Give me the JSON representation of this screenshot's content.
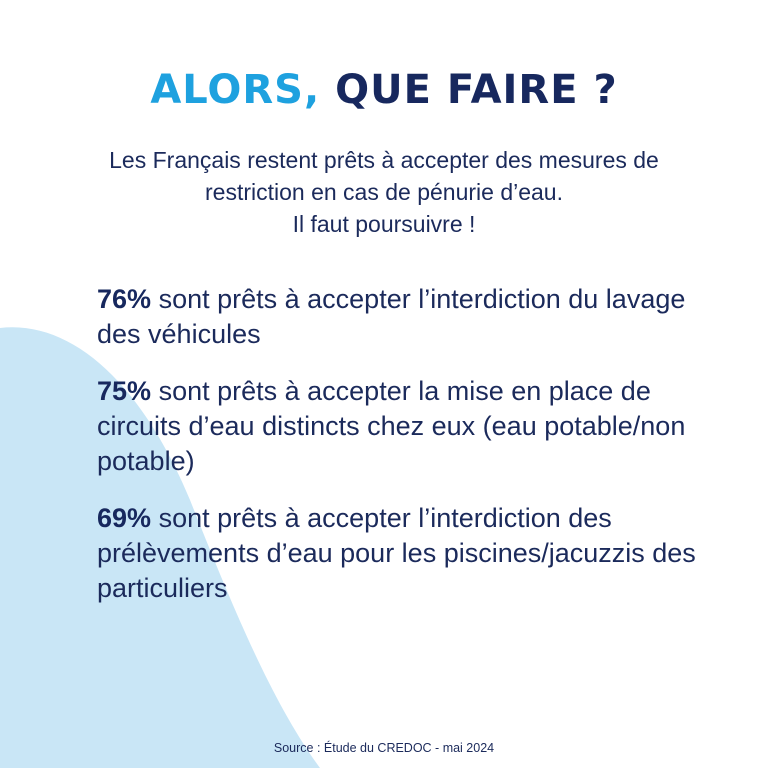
{
  "title": {
    "part1": "ALORS,",
    "part2": "QUE FAIRE ?"
  },
  "intro": {
    "line1": "Les Français restent prêts à accepter des mesures de",
    "line2": "restriction en cas de pénurie d’eau.",
    "line3": "Il faut poursuivre !"
  },
  "stats": [
    {
      "percent": "76%",
      "text": "sont prêts à accepter l’interdiction du lavage des véhicules"
    },
    {
      "percent": "75%",
      "text": "sont prêts à accepter la mise en place de circuits d’eau distincts chez eux (eau potable/non potable)"
    },
    {
      "percent": "69%",
      "text": "sont prêts à accepter l’interdiction des prélèvements d’eau pour les piscines/jacuzzis des particuliers"
    }
  ],
  "source": "Source : Étude du CREDOC - mai 2024",
  "colors": {
    "accent": "#1ea1df",
    "navy": "#17285e",
    "wave": "#c9e6f6"
  }
}
